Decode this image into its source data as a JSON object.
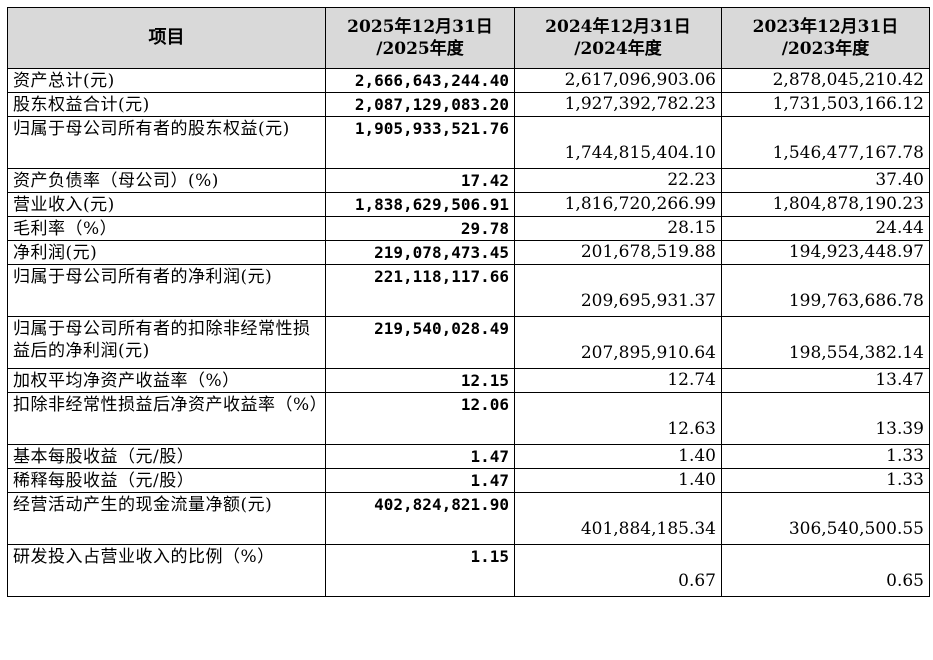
{
  "table": {
    "headers": {
      "item": "项目",
      "col2025": [
        "2025年12月31日",
        "/2025年度"
      ],
      "col2024": [
        "2024年12月31日",
        "/2024年度"
      ],
      "col2023": [
        "2023年12月31日",
        "/2023年度"
      ]
    },
    "rows": [
      {
        "label": "资产总计(元)",
        "v2025": "2,666,643,244.40",
        "v2024": "2,617,096,903.06",
        "v2023": "2,878,045,210.42"
      },
      {
        "label": "股东权益合计(元)",
        "v2025": "2,087,129,083.20",
        "v2024": "1,927,392,782.23",
        "v2023": "1,731,503,166.12"
      },
      {
        "label": "归属于母公司所有者的股东权益(元)",
        "v2025": "1,905,933,521.76",
        "v2024": "1,744,815,404.10",
        "v2023": "1,546,477,167.78"
      },
      {
        "label": "资产负债率（母公司）(%)",
        "v2025": "17.42",
        "v2024": "22.23",
        "v2023": "37.40"
      },
      {
        "label": "营业收入(元)",
        "v2025": "1,838,629,506.91",
        "v2024": "1,816,720,266.99",
        "v2023": "1,804,878,190.23"
      },
      {
        "label": "毛利率（%）",
        "v2025": "29.78",
        "v2024": "28.15",
        "v2023": "24.44"
      },
      {
        "label": "净利润(元)",
        "v2025": "219,078,473.45",
        "v2024": "201,678,519.88",
        "v2023": "194,923,448.97"
      },
      {
        "label": "归属于母公司所有者的净利润(元)",
        "v2025": "221,118,117.66",
        "v2024": "209,695,931.37",
        "v2023": "199,763,686.78"
      },
      {
        "label": "归属于母公司所有者的扣除非经常性损益后的净利润(元)",
        "v2025": "219,540,028.49",
        "v2024": "207,895,910.64",
        "v2023": "198,554,382.14"
      },
      {
        "label": "加权平均净资产收益率（%）",
        "v2025": "12.15",
        "v2024": "12.74",
        "v2023": "13.47"
      },
      {
        "label": "扣除非经常性损益后净资产收益率（%）",
        "v2025": "12.06",
        "v2024": "12.63",
        "v2023": "13.39"
      },
      {
        "label": "基本每股收益（元/股）",
        "v2025": "1.47",
        "v2024": "1.40",
        "v2023": "1.33"
      },
      {
        "label": "稀释每股收益（元/股）",
        "v2025": "1.47",
        "v2024": "1.40",
        "v2023": "1.33"
      },
      {
        "label": "经营活动产生的现金流量净额(元)",
        "v2025": "402,824,821.90",
        "v2024": "401,884,185.34",
        "v2023": "306,540,500.55"
      },
      {
        "label": "研发投入占营业收入的比例（%）",
        "v2025": "1.15",
        "v2024": "0.67",
        "v2023": "0.65"
      }
    ]
  }
}
